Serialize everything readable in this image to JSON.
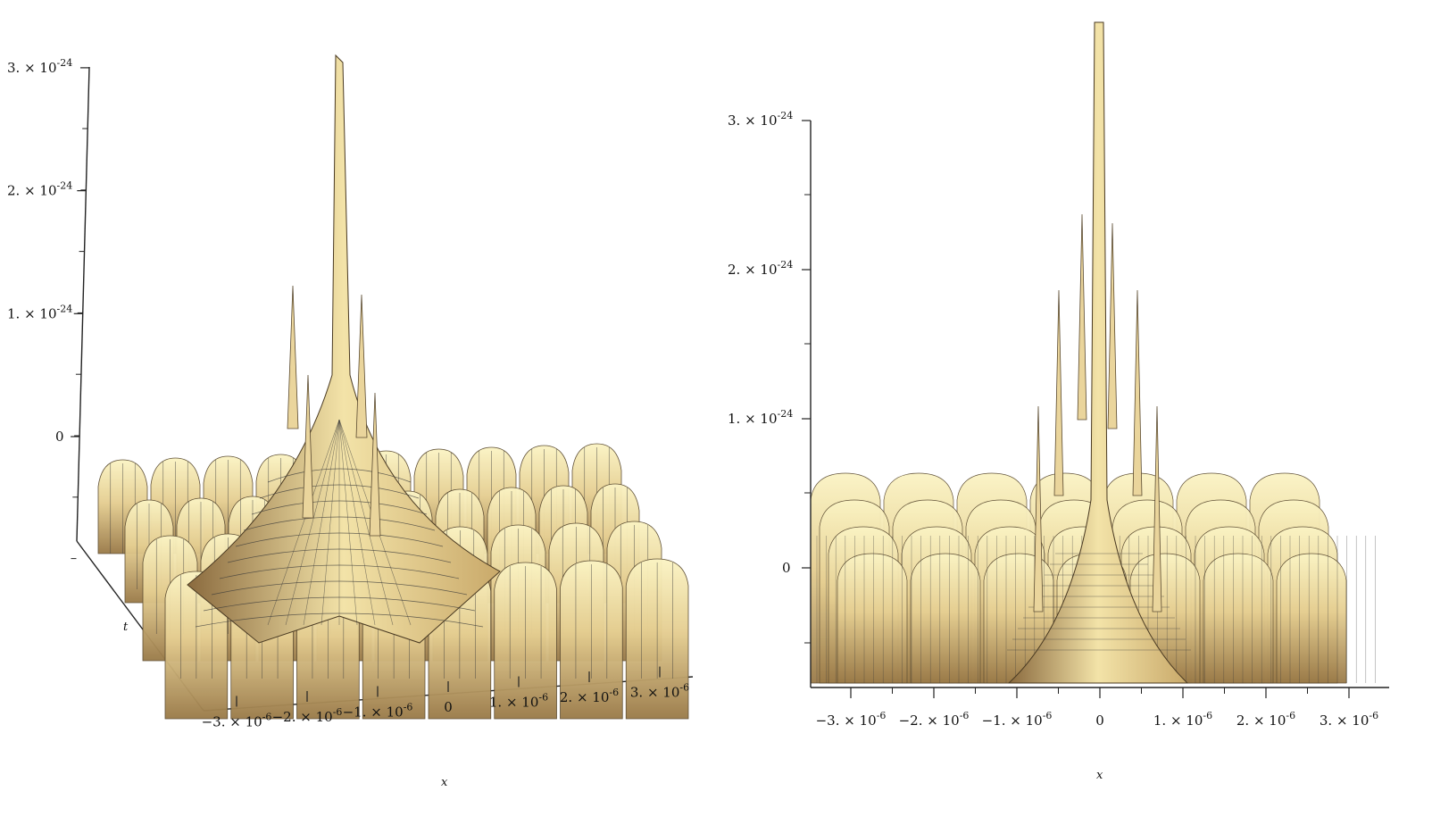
{
  "chart_data": [
    {
      "type": "surface",
      "view": "oblique",
      "xlabel": "x",
      "tlabel": "t",
      "zlabel": "",
      "x_ticks": [
        {
          "value": -3e-06,
          "mantissa": "−3.",
          "exp": "-6"
        },
        {
          "value": -2e-06,
          "mantissa": "−2.",
          "exp": "-6"
        },
        {
          "value": -1e-06,
          "mantissa": "−1.",
          "exp": "-6"
        },
        {
          "value": 0,
          "mantissa": "0",
          "exp": ""
        },
        {
          "value": 1e-06,
          "mantissa": "1.",
          "exp": "-6"
        },
        {
          "value": 2e-06,
          "mantissa": "2.",
          "exp": "-6"
        },
        {
          "value": 3e-06,
          "mantissa": "3.",
          "exp": "-6"
        }
      ],
      "z_ticks": [
        {
          "value": 3e-24,
          "mantissa": "3.",
          "exp": "-24"
        },
        {
          "value": 2e-24,
          "mantissa": "2.",
          "exp": "-24"
        },
        {
          "value": 1e-24,
          "mantissa": "1.",
          "exp": "-24"
        },
        {
          "value": 0,
          "mantissa": "0",
          "exp": ""
        }
      ],
      "xlim": [
        -3.5e-06,
        3.5e-06
      ],
      "zlim": [
        -1e-24,
        3.1e-24
      ],
      "peak": {
        "x": 0,
        "z": 3.05e-24
      },
      "surface_color": "#e2c98c",
      "highlight_color": "#fbf4c4",
      "shadow_color": "#8a6a3e",
      "mesh_color": "#3a3a3a"
    },
    {
      "type": "surface",
      "view": "front",
      "xlabel": "x",
      "zlabel": "",
      "x_ticks": [
        {
          "value": -3e-06,
          "mantissa": "−3.",
          "exp": "-6"
        },
        {
          "value": -2e-06,
          "mantissa": "−2.",
          "exp": "-6"
        },
        {
          "value": -1e-06,
          "mantissa": "−1.",
          "exp": "-6"
        },
        {
          "value": 0,
          "mantissa": "0",
          "exp": ""
        },
        {
          "value": 1e-06,
          "mantissa": "1.",
          "exp": "-6"
        },
        {
          "value": 2e-06,
          "mantissa": "2.",
          "exp": "-6"
        },
        {
          "value": 3e-06,
          "mantissa": "3.",
          "exp": "-6"
        }
      ],
      "z_ticks": [
        {
          "value": 3e-24,
          "mantissa": "3.",
          "exp": "-24"
        },
        {
          "value": 2e-24,
          "mantissa": "2.",
          "exp": "-24"
        },
        {
          "value": 1e-24,
          "mantissa": "1.",
          "exp": "-24"
        },
        {
          "value": 0,
          "mantissa": "0",
          "exp": ""
        }
      ],
      "xlim": [
        -3.5e-06,
        3.5e-06
      ],
      "zlim": [
        -1.6e-24,
        3.1e-24
      ],
      "peak": {
        "x": 0,
        "z": 3.05e-24
      },
      "surface_color": "#e2c98c",
      "highlight_color": "#fbf4c4",
      "shadow_color": "#8a6a3e",
      "mesh_color": "#3a3a3a"
    }
  ]
}
